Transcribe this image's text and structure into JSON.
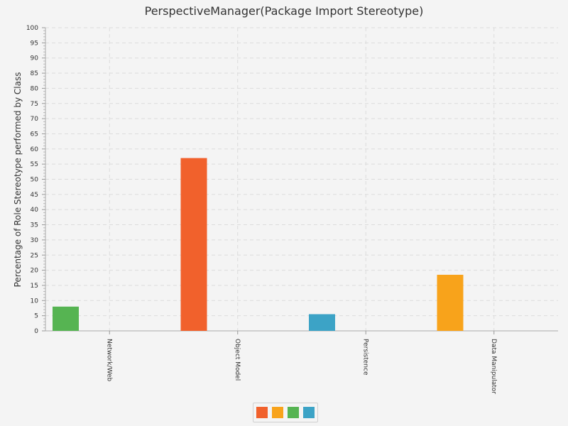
{
  "chart_data": {
    "type": "bar",
    "title": "PerspectiveManager(Package Import Stereotype)",
    "ylabel": "Percentage of Role Stereotype performed by Class",
    "xlabel": "",
    "ylim": [
      0,
      100
    ],
    "ytick_step": 5,
    "grid": true,
    "categories": [
      "Network/Web",
      "Object Model",
      "Persistence",
      "Data Manipulator"
    ],
    "series": [
      {
        "name": "Object Model",
        "color": "#f1612c",
        "values": [
          0,
          57,
          0,
          0
        ]
      },
      {
        "name": "Data Manipulator",
        "color": "#f8a31b",
        "values": [
          0,
          0,
          0,
          18.5
        ]
      },
      {
        "name": "Network/Web",
        "color": "#56b452",
        "values": [
          8,
          0,
          0,
          0
        ]
      },
      {
        "name": "Persistence",
        "color": "#3ca3c6",
        "values": [
          0,
          0,
          5.5,
          0
        ]
      }
    ],
    "legend_position": "bottom-center"
  }
}
